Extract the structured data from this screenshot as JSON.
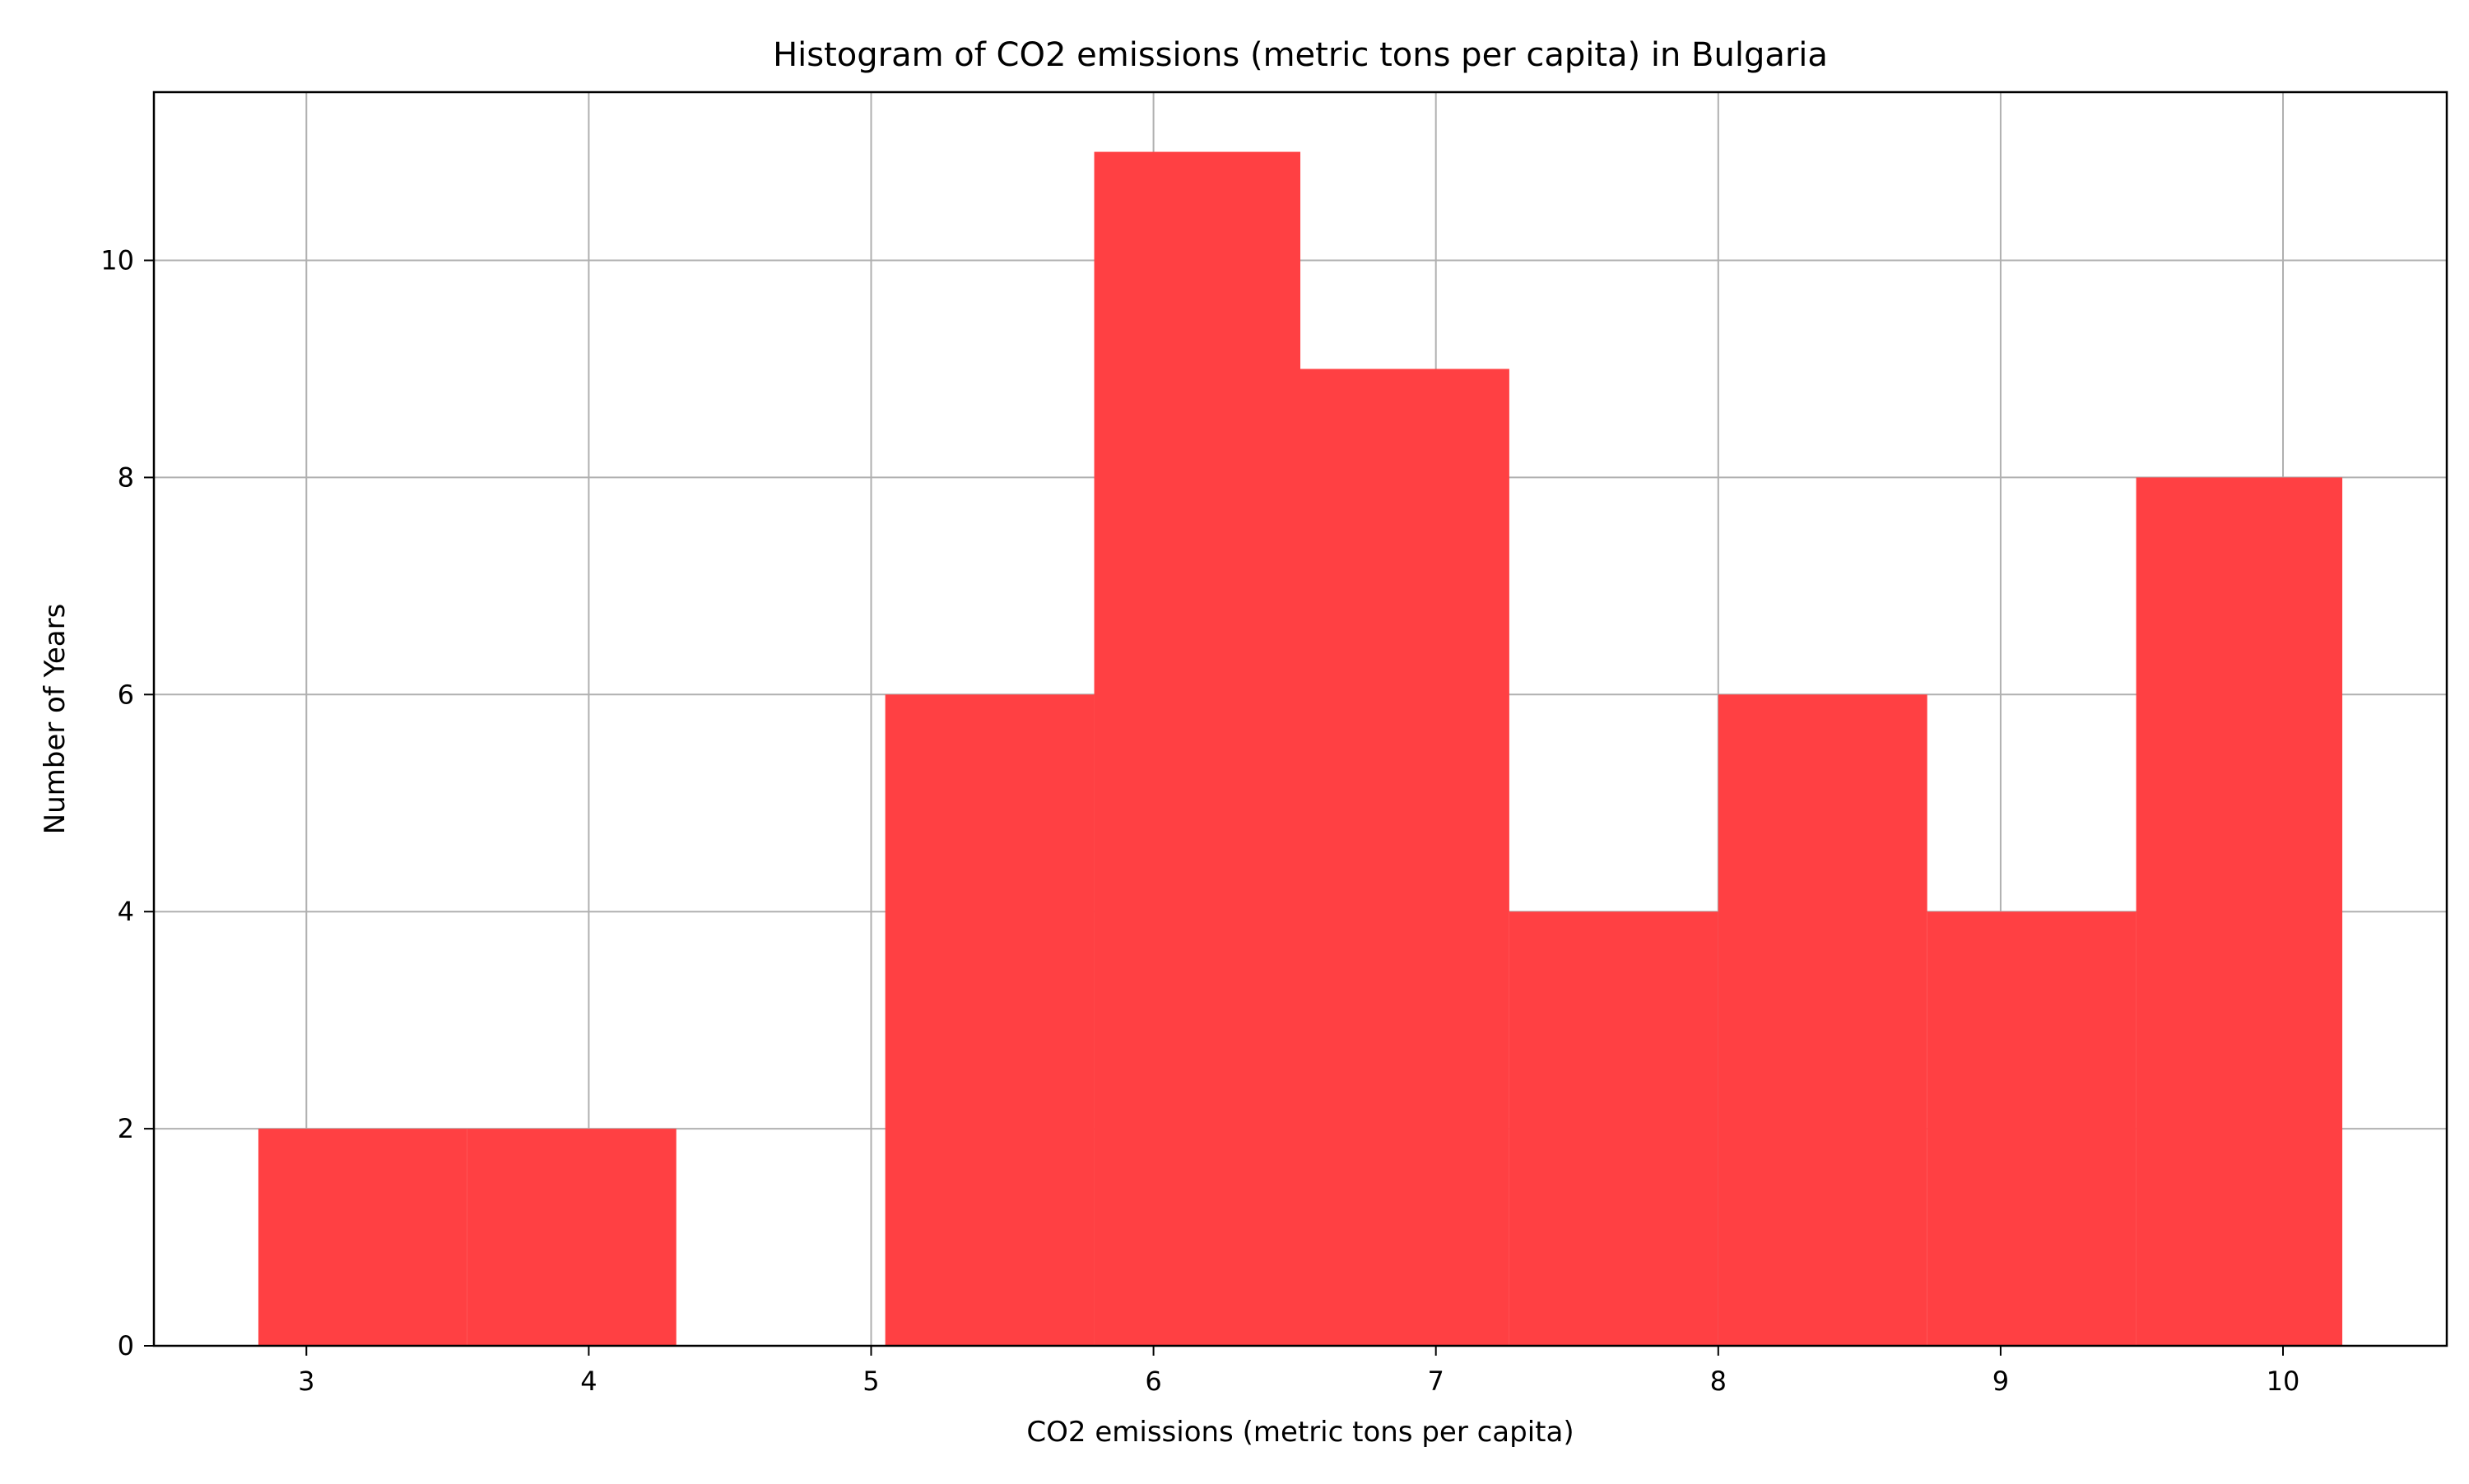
{
  "chart_data": {
    "type": "bar",
    "subtype": "histogram",
    "title": "Histogram of CO2 emissions (metric tons per capita) in Bulgaria",
    "xlabel": "CO2 emissions (metric tons per capita)",
    "ylabel": "Number of Years",
    "bins": [
      {
        "start": 2.83,
        "end": 3.57,
        "count": 2
      },
      {
        "start": 3.57,
        "end": 4.31,
        "count": 2
      },
      {
        "start": 4.31,
        "end": 5.05,
        "count": 0
      },
      {
        "start": 5.05,
        "end": 5.79,
        "count": 6
      },
      {
        "start": 5.79,
        "end": 6.52,
        "count": 11
      },
      {
        "start": 6.52,
        "end": 7.26,
        "count": 9
      },
      {
        "start": 7.26,
        "end": 8.0,
        "count": 4
      },
      {
        "start": 8.0,
        "end": 8.74,
        "count": 6
      },
      {
        "start": 8.74,
        "end": 9.48,
        "count": 4
      },
      {
        "start": 9.48,
        "end": 10.21,
        "count": 8
      }
    ],
    "xlim": [
      2.46,
      10.58
    ],
    "ylim": [
      0,
      11.55
    ],
    "xticks": [
      3,
      4,
      5,
      6,
      7,
      8,
      9,
      10
    ],
    "yticks": [
      0,
      2,
      4,
      6,
      8,
      10
    ],
    "grid": true,
    "bar_color": "#ff4043",
    "grid_color": "#b0b0b0"
  }
}
